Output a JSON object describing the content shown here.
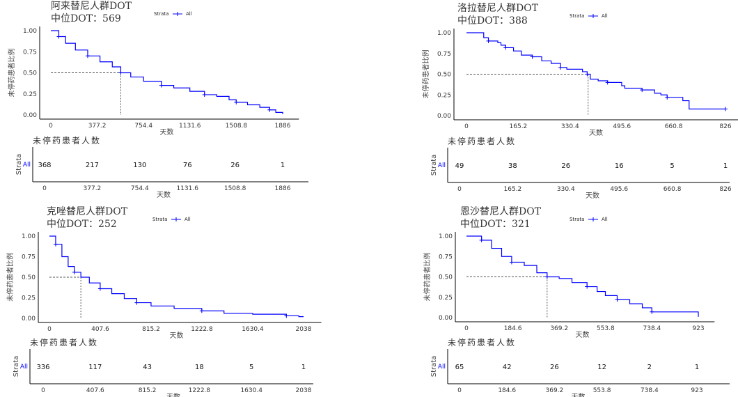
{
  "chart_data": [
    {
      "type": "line",
      "title": "阿来替尼人群DOT",
      "subtitle": "中位DOT：569",
      "median": 569,
      "xlabel": "天数",
      "ylabel": "未停药患者比例",
      "legend_title": "Strata",
      "legend_label": "All",
      "xlim": [
        0,
        1886
      ],
      "ylim": [
        0,
        1
      ],
      "xticks": [
        "0",
        "377.2",
        "754.4",
        "1131.6",
        "1508.8",
        "1886"
      ],
      "yticks": [
        "0.00",
        "0.25",
        "0.50",
        "0.75",
        "1.00"
      ],
      "points": [
        [
          0,
          1
        ],
        [
          60,
          1
        ],
        [
          65,
          0.93
        ],
        [
          120,
          0.85
        ],
        [
          200,
          0.77
        ],
        [
          300,
          0.7
        ],
        [
          400,
          0.63
        ],
        [
          500,
          0.57
        ],
        [
          569,
          0.5
        ],
        [
          650,
          0.45
        ],
        [
          754,
          0.4
        ],
        [
          900,
          0.35
        ],
        [
          1000,
          0.32
        ],
        [
          1131,
          0.28
        ],
        [
          1250,
          0.24
        ],
        [
          1350,
          0.22
        ],
        [
          1450,
          0.18
        ],
        [
          1508,
          0.15
        ],
        [
          1600,
          0.12
        ],
        [
          1700,
          0.09
        ],
        [
          1780,
          0.06
        ],
        [
          1830,
          0.03
        ],
        [
          1886,
          0.01
        ]
      ],
      "risk_title": "未停药患者人数",
      "risk_ylabel": "Strata",
      "risk": [
        "368",
        "217",
        "130",
        "76",
        "26",
        "1"
      ]
    },
    {
      "type": "line",
      "title": "洛拉替尼人群DOT",
      "subtitle": "中位DOT：388",
      "median": 388,
      "xlabel": "天数",
      "ylabel": "未停药患者比例",
      "legend_title": "Strata",
      "legend_label": "All",
      "xlim": [
        0,
        826
      ],
      "ylim": [
        0,
        1
      ],
      "xticks": [
        "0",
        "165.2",
        "330.4",
        "495.6",
        "660.8",
        "826"
      ],
      "yticks": [
        "0.00",
        "0.25",
        "0.50",
        "0.75",
        "1.00"
      ],
      "points": [
        [
          0,
          1
        ],
        [
          55,
          0.94
        ],
        [
          70,
          0.9
        ],
        [
          100,
          0.88
        ],
        [
          110,
          0.85
        ],
        [
          125,
          0.82
        ],
        [
          150,
          0.78
        ],
        [
          175,
          0.73
        ],
        [
          210,
          0.71
        ],
        [
          240,
          0.66
        ],
        [
          270,
          0.63
        ],
        [
          300,
          0.58
        ],
        [
          320,
          0.56
        ],
        [
          370,
          0.53
        ],
        [
          385,
          0.5
        ],
        [
          395,
          0.44
        ],
        [
          420,
          0.42
        ],
        [
          450,
          0.4
        ],
        [
          495,
          0.36
        ],
        [
          505,
          0.33
        ],
        [
          560,
          0.31
        ],
        [
          600,
          0.27
        ],
        [
          620,
          0.25
        ],
        [
          640,
          0.22
        ],
        [
          690,
          0.18
        ],
        [
          710,
          0.08
        ],
        [
          826,
          0.08
        ]
      ],
      "risk_title": "未停药患者人数",
      "risk_ylabel": "Strata",
      "risk": [
        "49",
        "38",
        "26",
        "16",
        "5",
        "1"
      ]
    },
    {
      "type": "line",
      "title": "克唑替尼人群DOT",
      "subtitle": "中位DOT：252",
      "median": 252,
      "xlabel": "天数",
      "ylabel": "未停药患者比例",
      "legend_title": "Strata",
      "legend_label": "All",
      "xlim": [
        0,
        2038
      ],
      "ylim": [
        0,
        1
      ],
      "xticks": [
        "0",
        "407.6",
        "815.2",
        "1222.8",
        "1630.4",
        "2038"
      ],
      "yticks": [
        "0.00",
        "0.25",
        "0.50",
        "0.75",
        "1.00"
      ],
      "points": [
        [
          0,
          1
        ],
        [
          40,
          1
        ],
        [
          50,
          0.9
        ],
        [
          100,
          0.75
        ],
        [
          150,
          0.63
        ],
        [
          200,
          0.56
        ],
        [
          252,
          0.5
        ],
        [
          320,
          0.43
        ],
        [
          407,
          0.36
        ],
        [
          500,
          0.3
        ],
        [
          600,
          0.24
        ],
        [
          700,
          0.19
        ],
        [
          815,
          0.15
        ],
        [
          1000,
          0.12
        ],
        [
          1222,
          0.09
        ],
        [
          1400,
          0.06
        ],
        [
          1630,
          0.05
        ],
        [
          1900,
          0.03
        ],
        [
          2000,
          0.02
        ],
        [
          2038,
          0.02
        ]
      ],
      "risk_title": "未停药患者人数",
      "risk_ylabel": "Strata",
      "risk": [
        "336",
        "117",
        "43",
        "18",
        "5",
        "1"
      ]
    },
    {
      "type": "line",
      "title": "恩沙替尼人群DOT",
      "subtitle": "中位DOT：321",
      "median": 321,
      "xlabel": "天数",
      "ylabel": "未停药患者比例",
      "legend_title": "Strata",
      "legend_label": "All",
      "xlim": [
        0,
        923
      ],
      "ylim": [
        0,
        1
      ],
      "xticks": [
        "0",
        "184.6",
        "369.2",
        "553.8",
        "738.4",
        "923"
      ],
      "yticks": [
        "0.00",
        "0.25",
        "0.50",
        "0.75",
        "1.00"
      ],
      "points": [
        [
          0,
          1
        ],
        [
          30,
          1
        ],
        [
          60,
          0.95
        ],
        [
          100,
          0.85
        ],
        [
          140,
          0.75
        ],
        [
          180,
          0.68
        ],
        [
          230,
          0.64
        ],
        [
          280,
          0.55
        ],
        [
          321,
          0.5
        ],
        [
          369,
          0.48
        ],
        [
          420,
          0.43
        ],
        [
          480,
          0.38
        ],
        [
          520,
          0.32
        ],
        [
          553,
          0.27
        ],
        [
          600,
          0.22
        ],
        [
          650,
          0.17
        ],
        [
          700,
          0.12
        ],
        [
          738,
          0.07
        ],
        [
          923,
          0.07
        ],
        [
          923,
          0.01
        ]
      ],
      "risk_title": "未停药患者人数",
      "risk_ylabel": "Strata",
      "risk": [
        "65",
        "42",
        "26",
        "12",
        "2",
        "1"
      ]
    }
  ],
  "colors": {
    "curve": "#0000ff",
    "median_line": "#555555"
  }
}
